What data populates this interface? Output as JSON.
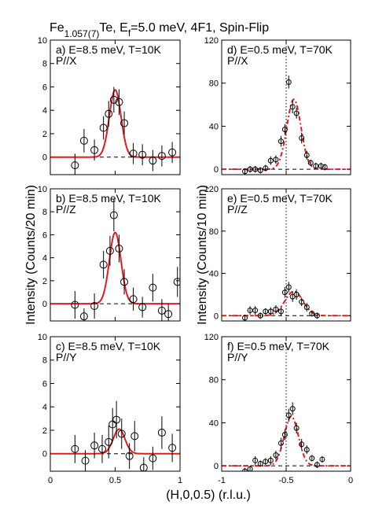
{
  "figure": {
    "title_main": "Fe",
    "title_sub": "1.057(7)",
    "title_mid": "Te, E",
    "title_sub2": "f",
    "title_end": "=5.0 meV, 4F1, Spin-Flip",
    "ylabel_left": "Intensity (Counts/20 min)",
    "ylabel_right": "Intensity (Counts/10 min)",
    "xlabel": "(H,0,0.5) (r.l.u.)"
  },
  "chart_data": [
    {
      "type": "scatter",
      "id": "a",
      "label_line1": "a) E=8.5 meV, T=10K",
      "label_line2": "P//X",
      "xlim": [
        0,
        1
      ],
      "ylim": [
        -1.5,
        10
      ],
      "yticks": [
        0,
        2,
        4,
        6,
        8,
        10
      ],
      "xticks": [
        0,
        0.5,
        1
      ],
      "points": [
        {
          "x": 0.19,
          "y": -0.7,
          "err": 1.0
        },
        {
          "x": 0.26,
          "y": 1.4,
          "err": 1.0
        },
        {
          "x": 0.34,
          "y": 0.6,
          "err": 0.9
        },
        {
          "x": 0.41,
          "y": 2.5,
          "err": 1.0
        },
        {
          "x": 0.45,
          "y": 3.7,
          "err": 1.1
        },
        {
          "x": 0.49,
          "y": 4.9,
          "err": 1.1
        },
        {
          "x": 0.53,
          "y": 4.7,
          "err": 1.1
        },
        {
          "x": 0.57,
          "y": 2.9,
          "err": 1.0
        },
        {
          "x": 0.64,
          "y": 0.3,
          "err": 0.9
        },
        {
          "x": 0.71,
          "y": 0.2,
          "err": 0.9
        },
        {
          "x": 0.79,
          "y": -0.3,
          "err": 0.9
        },
        {
          "x": 0.86,
          "y": 0.1,
          "err": 0.9
        },
        {
          "x": 0.94,
          "y": 0.4,
          "err": 0.9
        }
      ],
      "fit": {
        "center": 0.5,
        "amplitude": 5.75,
        "sigma": 0.045,
        "background": 0,
        "style": "solid"
      }
    },
    {
      "type": "scatter",
      "id": "b",
      "label_line1": "b) E=8.5 meV, T=10K",
      "label_line2": "P//Z",
      "xlim": [
        0,
        1
      ],
      "ylim": [
        -1.5,
        10
      ],
      "yticks": [
        0,
        2,
        4,
        6,
        8,
        10
      ],
      "xticks": [
        0,
        0.5,
        1
      ],
      "points": [
        {
          "x": 0.19,
          "y": -0.1,
          "err": 1.2
        },
        {
          "x": 0.26,
          "y": -1.1,
          "err": 0.7
        },
        {
          "x": 0.34,
          "y": -0.2,
          "err": 1.1
        },
        {
          "x": 0.41,
          "y": 3.4,
          "err": 1.2
        },
        {
          "x": 0.46,
          "y": 4.6,
          "err": 1.3
        },
        {
          "x": 0.49,
          "y": 7.7,
          "err": 1.4
        },
        {
          "x": 0.53,
          "y": 4.8,
          "err": 1.2
        },
        {
          "x": 0.57,
          "y": 1.9,
          "err": 1.1
        },
        {
          "x": 0.64,
          "y": 0.4,
          "err": 1.0
        },
        {
          "x": 0.71,
          "y": -0.3,
          "err": 0.9
        },
        {
          "x": 0.79,
          "y": 1.4,
          "err": 1.2
        },
        {
          "x": 0.86,
          "y": -0.6,
          "err": 1.0
        },
        {
          "x": 0.91,
          "y": -0.9,
          "err": 0.9
        },
        {
          "x": 0.98,
          "y": 1.9,
          "err": 1.3
        }
      ],
      "fit": {
        "center": 0.5,
        "amplitude": 6.2,
        "sigma": 0.045,
        "background": 0,
        "style": "solid"
      }
    },
    {
      "type": "scatter",
      "id": "c",
      "label_line1": "c) E=8.5 meV, T=10K",
      "label_line2": "P//Y",
      "xlim": [
        0,
        1
      ],
      "ylim": [
        -1.5,
        10
      ],
      "yticks": [
        0,
        2,
        4,
        6,
        8,
        10
      ],
      "xticks": [
        0,
        0.5,
        1
      ],
      "xticklabels": [
        "0",
        "0.5",
        "1"
      ],
      "points": [
        {
          "x": 0.19,
          "y": 0.4,
          "err": 1.2
        },
        {
          "x": 0.27,
          "y": -0.6,
          "err": 0.9
        },
        {
          "x": 0.34,
          "y": 0.7,
          "err": 1.1
        },
        {
          "x": 0.4,
          "y": 0.4,
          "err": 1.2
        },
        {
          "x": 0.45,
          "y": 1.0,
          "err": 1.4
        },
        {
          "x": 0.48,
          "y": 2.5,
          "err": 1.4
        },
        {
          "x": 0.51,
          "y": 2.9,
          "err": 1.6
        },
        {
          "x": 0.55,
          "y": 1.7,
          "err": 1.3
        },
        {
          "x": 0.61,
          "y": -0.2,
          "err": 1.1
        },
        {
          "x": 0.65,
          "y": 1.5,
          "err": 1.3
        },
        {
          "x": 0.72,
          "y": -1.2,
          "err": 0.9
        },
        {
          "x": 0.79,
          "y": -0.4,
          "err": 1.0
        },
        {
          "x": 0.86,
          "y": 1.8,
          "err": 1.4
        },
        {
          "x": 0.94,
          "y": 0.5,
          "err": 1.2
        }
      ],
      "fit": {
        "center": 0.53,
        "amplitude": 2.1,
        "sigma": 0.045,
        "background": 0,
        "style": "solid"
      }
    },
    {
      "type": "scatter",
      "id": "d",
      "label_line1": "d) E=0.5 meV, T=70K",
      "label_line2": "P//X",
      "xlim": [
        -1,
        0
      ],
      "ylim": [
        -5,
        120
      ],
      "yticks": [
        0,
        40,
        80,
        120
      ],
      "xticks": [
        -1,
        -0.5,
        0
      ],
      "vline": -0.5,
      "points": [
        {
          "x": -0.82,
          "y": -2,
          "err": 3
        },
        {
          "x": -0.78,
          "y": 0,
          "err": 3
        },
        {
          "x": -0.74,
          "y": 0,
          "err": 3
        },
        {
          "x": -0.7,
          "y": -1,
          "err": 3
        },
        {
          "x": -0.66,
          "y": 1,
          "err": 3
        },
        {
          "x": -0.62,
          "y": 8,
          "err": 4
        },
        {
          "x": -0.58,
          "y": 9,
          "err": 4
        },
        {
          "x": -0.54,
          "y": 26,
          "err": 5
        },
        {
          "x": -0.51,
          "y": 37,
          "err": 5
        },
        {
          "x": -0.48,
          "y": 81,
          "err": 6
        },
        {
          "x": -0.45,
          "y": 58,
          "err": 6
        },
        {
          "x": -0.42,
          "y": 52,
          "err": 5
        },
        {
          "x": -0.38,
          "y": 29,
          "err": 5
        },
        {
          "x": -0.34,
          "y": 13,
          "err": 4
        },
        {
          "x": -0.31,
          "y": 6,
          "err": 3
        },
        {
          "x": -0.27,
          "y": 3,
          "err": 3
        },
        {
          "x": -0.23,
          "y": 3,
          "err": 3
        },
        {
          "x": -0.2,
          "y": 2,
          "err": 3
        }
      ],
      "fit": {
        "center": -0.44,
        "amplitude": 65,
        "sigma": 0.055,
        "background": 0,
        "style": "dash"
      }
    },
    {
      "type": "scatter",
      "id": "e",
      "label_line1": "e) E=0.5 meV, T=70K",
      "label_line2": "P//Z",
      "xlim": [
        -1,
        0
      ],
      "ylim": [
        -5,
        120
      ],
      "yticks": [
        0,
        40,
        80,
        120
      ],
      "xticks": [
        -1,
        -0.5,
        0
      ],
      "vline": -0.5,
      "points": [
        {
          "x": -0.82,
          "y": -2,
          "err": 3
        },
        {
          "x": -0.78,
          "y": 5,
          "err": 4
        },
        {
          "x": -0.74,
          "y": 5,
          "err": 4
        },
        {
          "x": -0.7,
          "y": 0,
          "err": 3
        },
        {
          "x": -0.66,
          "y": 4,
          "err": 3
        },
        {
          "x": -0.62,
          "y": 4,
          "err": 4
        },
        {
          "x": -0.58,
          "y": 6,
          "err": 4
        },
        {
          "x": -0.54,
          "y": 4,
          "err": 4
        },
        {
          "x": -0.51,
          "y": 22,
          "err": 5
        },
        {
          "x": -0.48,
          "y": 27,
          "err": 5
        },
        {
          "x": -0.45,
          "y": 18,
          "err": 5
        },
        {
          "x": -0.42,
          "y": 20,
          "err": 5
        },
        {
          "x": -0.38,
          "y": 13,
          "err": 4
        },
        {
          "x": -0.34,
          "y": 8,
          "err": 4
        },
        {
          "x": -0.3,
          "y": 2,
          "err": 3
        },
        {
          "x": -0.26,
          "y": 0,
          "err": 3
        }
      ],
      "fit": {
        "center": -0.44,
        "amplitude": 23,
        "sigma": 0.07,
        "background": 0,
        "style": "dash"
      }
    },
    {
      "type": "scatter",
      "id": "f",
      "label_line1": "f) E=0.5 meV, T=70K",
      "label_line2": "P//Y",
      "xlim": [
        -1,
        0
      ],
      "ylim": [
        -5,
        120
      ],
      "yticks": [
        0,
        40,
        80,
        120
      ],
      "xticks": [
        -1,
        -0.5,
        0
      ],
      "xticklabels": [
        "-1",
        "-0.5",
        "0"
      ],
      "vline": -0.5,
      "points": [
        {
          "x": -0.82,
          "y": -5,
          "err": 3
        },
        {
          "x": -0.78,
          "y": -3,
          "err": 3
        },
        {
          "x": -0.74,
          "y": 5,
          "err": 4
        },
        {
          "x": -0.7,
          "y": 2,
          "err": 3
        },
        {
          "x": -0.66,
          "y": 4,
          "err": 3
        },
        {
          "x": -0.62,
          "y": 5,
          "err": 4
        },
        {
          "x": -0.58,
          "y": 10,
          "err": 4
        },
        {
          "x": -0.54,
          "y": 21,
          "err": 5
        },
        {
          "x": -0.51,
          "y": 29,
          "err": 5
        },
        {
          "x": -0.48,
          "y": 47,
          "err": 6
        },
        {
          "x": -0.45,
          "y": 53,
          "err": 6
        },
        {
          "x": -0.42,
          "y": 35,
          "err": 5
        },
        {
          "x": -0.38,
          "y": 20,
          "err": 5
        },
        {
          "x": -0.34,
          "y": 15,
          "err": 4
        },
        {
          "x": -0.3,
          "y": 7,
          "err": 3
        },
        {
          "x": -0.26,
          "y": 1,
          "err": 3
        },
        {
          "x": -0.22,
          "y": 6,
          "err": 3
        }
      ],
      "fit": {
        "center": -0.46,
        "amplitude": 46,
        "sigma": 0.055,
        "background": 0,
        "style": "dash"
      }
    }
  ]
}
